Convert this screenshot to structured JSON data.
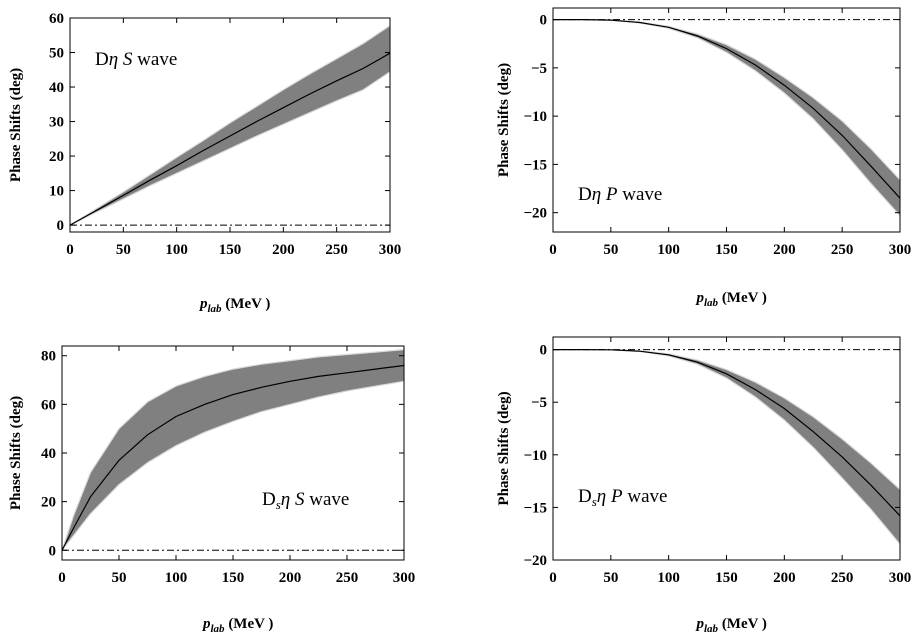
{
  "chart_data": [
    {
      "type": "line",
      "panel_label": {
        "prefix": "D",
        "sub": "",
        "meson": "η",
        "wave_letter": "S",
        "suffix": " wave"
      },
      "xlabel": {
        "main": "p",
        "sub": "lab",
        "unit": " (MeV )"
      },
      "ylabel": "Phase Shifts (deg)",
      "xlim": [
        0,
        300
      ],
      "ylim": [
        -2,
        60
      ],
      "xticks": [
        0,
        50,
        100,
        150,
        200,
        250,
        300
      ],
      "yticks": [
        0,
        10,
        20,
        30,
        40,
        50,
        60
      ],
      "x": [
        0,
        25,
        50,
        75,
        100,
        125,
        150,
        175,
        200,
        225,
        250,
        275,
        300
      ],
      "central": [
        0,
        4.3,
        8.6,
        13.0,
        17.2,
        21.6,
        25.8,
        30.0,
        34.0,
        38.0,
        41.8,
        45.4,
        49.8
      ],
      "band_upper": [
        0,
        4.8,
        9.6,
        14.6,
        19.6,
        24.5,
        29.6,
        34.4,
        39.2,
        43.8,
        48.2,
        52.6,
        57.8
      ],
      "band_lower": [
        0,
        3.8,
        7.6,
        11.4,
        15.0,
        18.6,
        22.2,
        25.8,
        29.2,
        32.6,
        36.0,
        39.2,
        44.4
      ],
      "reference_line": 0
    },
    {
      "type": "line",
      "panel_label": {
        "prefix": "D",
        "sub": "",
        "meson": "η",
        "wave_letter": "P",
        "suffix": " wave"
      },
      "xlabel": {
        "main": "p",
        "sub": "lab",
        "unit": " (MeV )"
      },
      "ylabel": "Phase Shifts (deg)",
      "xlim": [
        0,
        300
      ],
      "ylim": [
        -22,
        1.2
      ],
      "xticks": [
        0,
        50,
        100,
        150,
        200,
        250,
        300
      ],
      "yticks": [
        -20,
        -15,
        -10,
        -5,
        0
      ],
      "x": [
        0,
        25,
        50,
        75,
        100,
        125,
        150,
        175,
        200,
        225,
        250,
        275,
        300
      ],
      "central": [
        0,
        0,
        -0.05,
        -0.3,
        -0.8,
        -1.7,
        -3.0,
        -4.7,
        -6.8,
        -9.2,
        -12.0,
        -15.2,
        -18.5
      ],
      "band_upper": [
        0,
        0,
        -0.04,
        -0.25,
        -0.7,
        -1.5,
        -2.6,
        -4.1,
        -6.0,
        -8.1,
        -10.5,
        -13.4,
        -16.6
      ],
      "band_lower": [
        0,
        0,
        -0.06,
        -0.35,
        -0.9,
        -1.9,
        -3.4,
        -5.3,
        -7.6,
        -10.3,
        -13.5,
        -17.0,
        -20.3
      ],
      "reference_line": 0
    },
    {
      "type": "line",
      "panel_label": {
        "prefix": "D",
        "sub": "s",
        "meson": "η",
        "wave_letter": "S",
        "suffix": " wave"
      },
      "xlabel": {
        "main": "p",
        "sub": "lab",
        "unit": " (MeV )"
      },
      "ylabel": "Phase Shifts (deg)",
      "xlim": [
        0,
        300
      ],
      "ylim": [
        -4,
        84
      ],
      "xticks": [
        0,
        50,
        100,
        150,
        200,
        250,
        300
      ],
      "yticks": [
        0,
        20,
        40,
        60,
        80
      ],
      "x": [
        0,
        10,
        25,
        50,
        75,
        100,
        125,
        150,
        175,
        200,
        225,
        250,
        275,
        300
      ],
      "central": [
        0,
        9,
        22,
        37,
        47.5,
        55,
        60,
        64,
        67,
        69.5,
        71.5,
        73,
        74.5,
        76
      ],
      "band_upper": [
        0,
        14,
        32,
        50,
        61,
        67.5,
        71.5,
        74.5,
        76.5,
        78,
        79.5,
        80.5,
        81.5,
        82.5
      ],
      "band_lower": [
        0,
        6,
        15,
        27,
        36,
        43,
        48.5,
        53,
        57,
        60,
        63,
        65.5,
        67.5,
        69.5
      ],
      "reference_line": 0
    },
    {
      "type": "line",
      "panel_label": {
        "prefix": "D",
        "sub": "s",
        "meson": "η",
        "wave_letter": "P",
        "suffix": " wave"
      },
      "xlabel": {
        "main": "p",
        "sub": "lab",
        "unit": " (MeV )"
      },
      "ylabel": "Phase Shifts (deg)",
      "xlim": [
        0,
        300
      ],
      "ylim": [
        -20,
        1.2
      ],
      "xticks": [
        0,
        50,
        100,
        150,
        200,
        250,
        300
      ],
      "yticks": [
        -20,
        -15,
        -10,
        -5,
        0
      ],
      "x": [
        0,
        25,
        50,
        75,
        100,
        125,
        150,
        175,
        200,
        225,
        250,
        275,
        300
      ],
      "central": [
        0,
        0,
        -0.02,
        -0.15,
        -0.5,
        -1.2,
        -2.3,
        -3.8,
        -5.6,
        -7.8,
        -10.2,
        -12.9,
        -15.8
      ],
      "band_upper": [
        0,
        0,
        -0.02,
        -0.12,
        -0.4,
        -1.0,
        -1.9,
        -3.1,
        -4.6,
        -6.4,
        -8.5,
        -10.8,
        -13.3
      ],
      "band_lower": [
        0,
        0,
        -0.03,
        -0.18,
        -0.6,
        -1.4,
        -2.7,
        -4.5,
        -6.7,
        -9.3,
        -12.2,
        -15.2,
        -18.5
      ],
      "reference_line": 0
    }
  ],
  "colors": {
    "band_fill": "#808080",
    "band_edge": "#d9d9d9",
    "line": "#000000",
    "axis": "#000000",
    "reference": "#000000"
  }
}
